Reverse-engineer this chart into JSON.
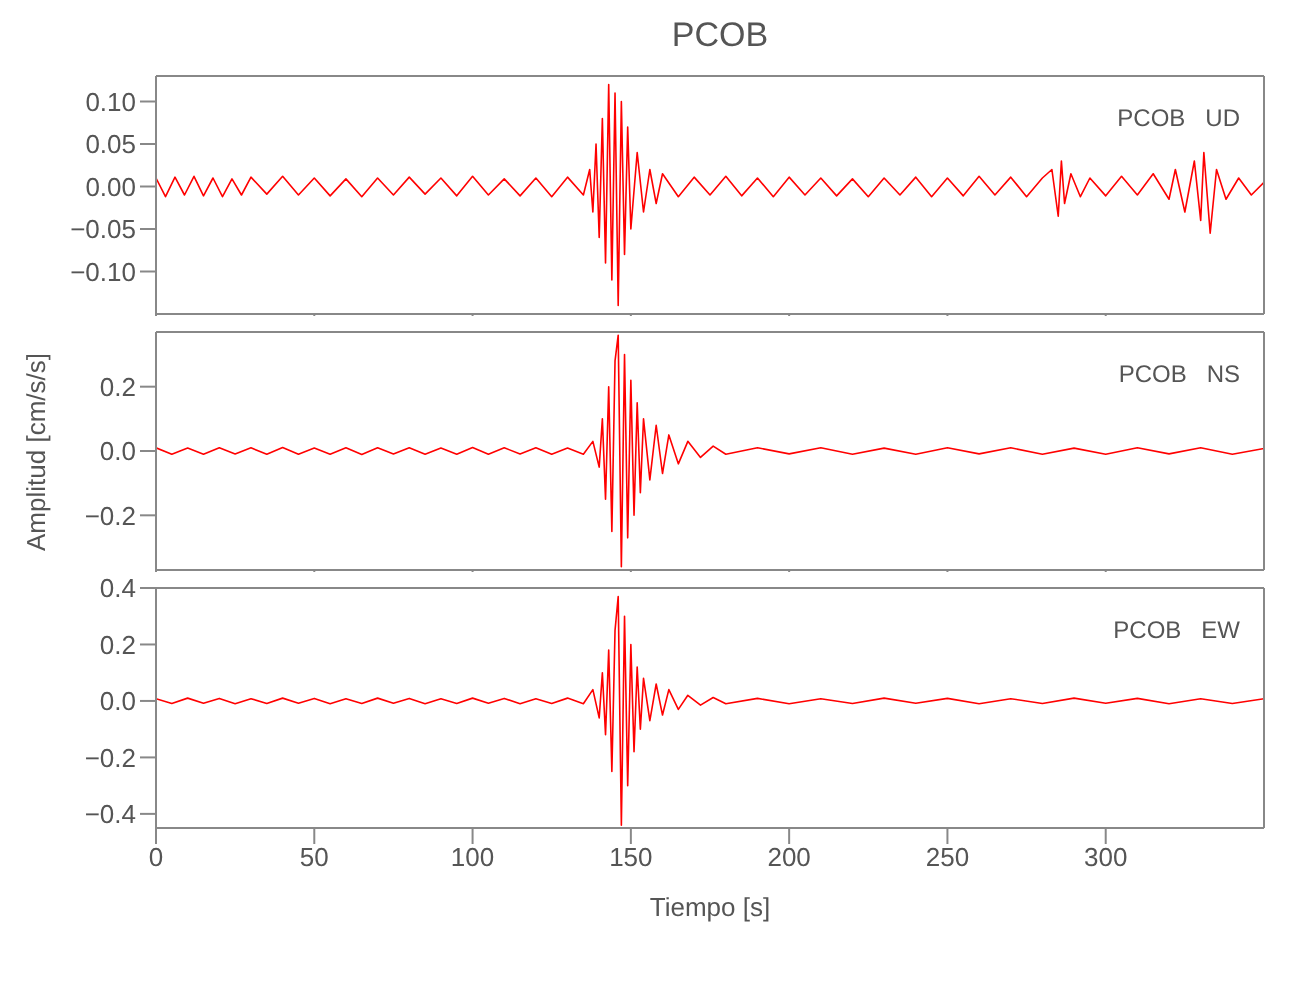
{
  "chart_data": [
    {
      "type": "line",
      "title": "PCOB",
      "annotations": [
        "PCOB   UD"
      ],
      "xlim": [
        0,
        350
      ],
      "xticks": [
        0,
        50,
        100,
        150,
        200,
        250,
        300
      ],
      "ylim": [
        -0.15,
        0.13
      ],
      "yticks": [
        {
          "value": -0.1,
          "label": "−0.10"
        },
        -0.05,
        {
          "value": 0,
          "label": "0.00"
        },
        0.05,
        {
          "value": 0.1,
          "label": "0.10"
        }
      ],
      "tick_labels": "y",
      "series": [
        {
          "color": "#ff0000",
          "x": [
            0,
            3,
            6,
            9,
            12,
            15,
            18,
            21,
            24,
            27,
            30,
            35,
            40,
            45,
            50,
            55,
            60,
            65,
            70,
            75,
            80,
            85,
            90,
            95,
            100,
            105,
            110,
            115,
            120,
            125,
            130,
            135,
            137,
            138,
            139,
            140,
            141,
            142,
            143,
            144,
            145,
            146,
            147,
            148,
            149,
            150,
            152,
            154,
            156,
            158,
            160,
            165,
            170,
            175,
            180,
            185,
            190,
            195,
            200,
            205,
            210,
            215,
            220,
            225,
            230,
            235,
            240,
            245,
            250,
            255,
            260,
            265,
            270,
            275,
            280,
            283,
            285,
            286,
            287,
            289,
            292,
            295,
            300,
            305,
            310,
            315,
            320,
            322,
            325,
            328,
            330,
            331,
            333,
            335,
            338,
            342,
            346,
            350
          ],
          "values": [
            0.01,
            -0.012,
            0.011,
            -0.01,
            0.012,
            -0.011,
            0.01,
            -0.012,
            0.009,
            -0.01,
            0.011,
            -0.009,
            0.012,
            -0.01,
            0.01,
            -0.011,
            0.009,
            -0.012,
            0.01,
            -0.01,
            0.011,
            -0.009,
            0.01,
            -0.011,
            0.012,
            -0.01,
            0.009,
            -0.011,
            0.01,
            -0.012,
            0.011,
            -0.01,
            0.02,
            -0.03,
            0.05,
            -0.06,
            0.08,
            -0.09,
            0.12,
            -0.11,
            0.11,
            -0.14,
            0.1,
            -0.08,
            0.07,
            -0.05,
            0.04,
            -0.03,
            0.02,
            -0.02,
            0.015,
            -0.012,
            0.011,
            -0.01,
            0.012,
            -0.011,
            0.01,
            -0.012,
            0.011,
            -0.01,
            0.01,
            -0.011,
            0.009,
            -0.012,
            0.01,
            -0.01,
            0.011,
            -0.012,
            0.01,
            -0.011,
            0.012,
            -0.01,
            0.011,
            -0.012,
            0.01,
            0.02,
            -0.035,
            0.03,
            -0.02,
            0.015,
            -0.012,
            0.01,
            -0.011,
            0.012,
            -0.01,
            0.015,
            -0.015,
            0.02,
            -0.03,
            0.03,
            -0.04,
            0.04,
            -0.055,
            0.02,
            -0.015,
            0.01,
            -0.01,
            0.005
          ]
        }
      ]
    },
    {
      "type": "line",
      "ylabel": "Amplitud [cm/s/s]",
      "annotations": [
        "PCOB   NS"
      ],
      "xlim": [
        0,
        350
      ],
      "xticks": [
        0,
        50,
        100,
        150,
        200,
        250,
        300
      ],
      "ylim": [
        -0.37,
        0.37
      ],
      "yticks": [
        -0.2,
        {
          "value": 0,
          "label": "0.0"
        },
        0.2
      ],
      "tick_labels": "y",
      "series": [
        {
          "color": "#ff0000",
          "x": [
            0,
            5,
            10,
            15,
            20,
            25,
            30,
            35,
            40,
            45,
            50,
            55,
            60,
            65,
            70,
            75,
            80,
            85,
            90,
            95,
            100,
            105,
            110,
            115,
            120,
            125,
            130,
            135,
            138,
            140,
            141,
            142,
            143,
            144,
            145,
            146,
            147,
            148,
            149,
            150,
            151,
            152,
            153,
            154,
            156,
            158,
            160,
            162,
            165,
            168,
            172,
            176,
            180,
            190,
            200,
            210,
            220,
            230,
            240,
            250,
            260,
            270,
            280,
            290,
            300,
            310,
            320,
            330,
            340,
            350
          ],
          "values": [
            0.01,
            -0.01,
            0.009,
            -0.01,
            0.01,
            -0.009,
            0.01,
            -0.01,
            0.011,
            -0.01,
            0.009,
            -0.01,
            0.01,
            -0.011,
            0.01,
            -0.009,
            0.01,
            -0.01,
            0.009,
            -0.01,
            0.011,
            -0.01,
            0.01,
            -0.009,
            0.01,
            -0.01,
            0.009,
            -0.01,
            0.03,
            -0.05,
            0.1,
            -0.15,
            0.2,
            -0.25,
            0.28,
            0.36,
            -0.36,
            0.3,
            -0.27,
            0.22,
            -0.2,
            0.15,
            -0.13,
            0.1,
            -0.09,
            0.08,
            -0.07,
            0.05,
            -0.04,
            0.03,
            -0.02,
            0.015,
            -0.01,
            0.01,
            -0.009,
            0.01,
            -0.01,
            0.009,
            -0.01,
            0.01,
            -0.009,
            0.01,
            -0.01,
            0.009,
            -0.01,
            0.01,
            -0.009,
            0.01,
            -0.01,
            0.008
          ]
        }
      ]
    },
    {
      "type": "line",
      "xlabel": "Tiempo [s]",
      "annotations": [
        "PCOB   EW"
      ],
      "xlim": [
        0,
        350
      ],
      "xticks": [
        0,
        50,
        100,
        150,
        200,
        250,
        300
      ],
      "ylim": [
        -0.45,
        0.4
      ],
      "yticks": [
        -0.4,
        -0.2,
        {
          "value": 0,
          "label": "0.0"
        },
        0.2,
        0.4
      ],
      "series": [
        {
          "color": "#ff0000",
          "x": [
            0,
            5,
            10,
            15,
            20,
            25,
            30,
            35,
            40,
            45,
            50,
            55,
            60,
            65,
            70,
            75,
            80,
            85,
            90,
            95,
            100,
            105,
            110,
            115,
            120,
            125,
            130,
            135,
            138,
            140,
            141,
            142,
            143,
            144,
            145,
            146,
            147,
            148,
            149,
            150,
            151,
            152,
            153,
            154,
            156,
            158,
            160,
            162,
            165,
            168,
            172,
            176,
            180,
            190,
            200,
            210,
            220,
            230,
            240,
            250,
            260,
            270,
            280,
            290,
            300,
            310,
            320,
            330,
            340,
            350
          ],
          "values": [
            0.008,
            -0.009,
            0.01,
            -0.008,
            0.009,
            -0.01,
            0.008,
            -0.009,
            0.01,
            -0.008,
            0.009,
            -0.01,
            0.008,
            -0.009,
            0.01,
            -0.008,
            0.009,
            -0.01,
            0.008,
            -0.009,
            0.01,
            -0.008,
            0.009,
            -0.01,
            0.008,
            -0.009,
            0.01,
            -0.01,
            0.04,
            -0.06,
            0.1,
            -0.12,
            0.18,
            -0.25,
            0.25,
            0.37,
            -0.44,
            0.3,
            -0.3,
            0.2,
            -0.18,
            0.12,
            -0.1,
            0.08,
            -0.07,
            0.06,
            -0.05,
            0.04,
            -0.03,
            0.02,
            -0.015,
            0.012,
            -0.01,
            0.009,
            -0.01,
            0.008,
            -0.009,
            0.01,
            -0.008,
            0.009,
            -0.01,
            0.008,
            -0.009,
            0.01,
            -0.008,
            0.009,
            -0.01,
            0.008,
            -0.009,
            0.008
          ]
        }
      ]
    }
  ]
}
